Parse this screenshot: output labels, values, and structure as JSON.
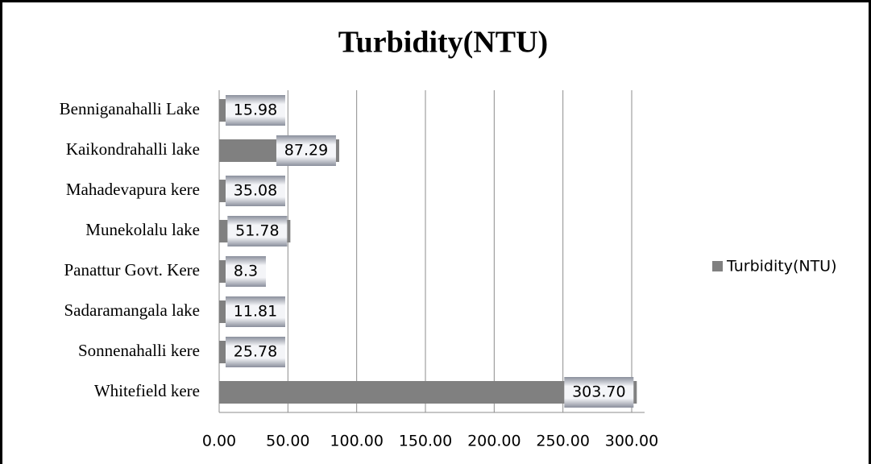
{
  "chart_data": {
    "type": "bar",
    "orientation": "horizontal",
    "title": "Turbidity(NTU)",
    "categories": [
      "Benniganahalli Lake",
      "Kaikondrahalli lake",
      "Mahadevapura kere",
      "Munekolalu lake",
      "Panattur Govt. Kere",
      "Sadaramangala lake",
      "Sonnenahalli kere",
      "Whitefield kere"
    ],
    "series": [
      {
        "name": "Turbidity(NTU)",
        "color": "#808080",
        "values": [
          15.98,
          87.29,
          35.08,
          51.78,
          8.3,
          11.81,
          25.78,
          303.7
        ],
        "value_labels": [
          "15.98",
          "87.29",
          "35.08",
          "51.78",
          "8.3",
          "11.81",
          "25.78",
          "303.70"
        ]
      }
    ],
    "xlim": [
      0,
      300
    ],
    "xticks": [
      {
        "value": 0,
        "label": "0.00"
      },
      {
        "value": 50,
        "label": "50.00"
      },
      {
        "value": 100,
        "label": "100.00"
      },
      {
        "value": 150,
        "label": "150.00"
      },
      {
        "value": 200,
        "label": "200.00"
      },
      {
        "value": 250,
        "label": "250.00"
      },
      {
        "value": 300,
        "label": "300.00"
      }
    ],
    "grid": true,
    "legend": "right"
  }
}
